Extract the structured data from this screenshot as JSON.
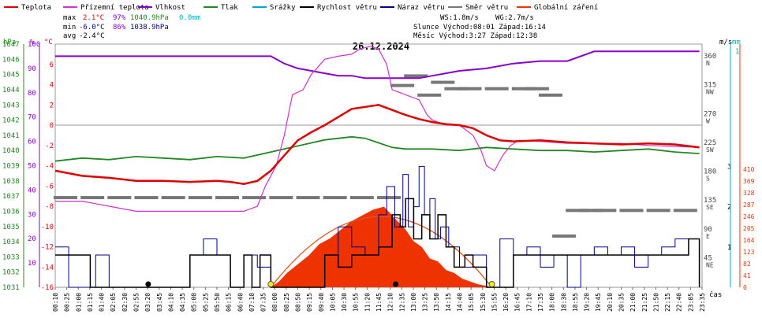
{
  "legend": [
    {
      "label": "Teplota",
      "color": "#dd0000"
    },
    {
      "label": "Přízemní teplota",
      "color": "#cc33cc"
    },
    {
      "label": "Vlhkost",
      "color": "#8800cc"
    },
    {
      "label": "Tlak",
      "color": "#228822"
    },
    {
      "label": "Srážky",
      "color": "#00aacc"
    },
    {
      "label": "Rychlost větru",
      "color": "#000000"
    },
    {
      "label": "Náraz větru",
      "color": "#000088"
    },
    {
      "label": "Směr větru",
      "color": "#777777"
    },
    {
      "label": "Globální záření",
      "color": "#ee3300"
    }
  ],
  "stats": {
    "max": {
      "label": "max",
      "temp": "2.1°C",
      "hum": "97%",
      "press": "1040.9hPa",
      "rain": "0.0mm"
    },
    "min": {
      "label": "min",
      "temp": "-6.0°C",
      "hum": "86%",
      "press": "1038.9hPa"
    },
    "avg": {
      "label": "avg",
      "temp": "-2.4°C"
    }
  },
  "wind_info": {
    "ws": "WS:1.8m/s",
    "wg": "WG:2.7m/s"
  },
  "sun_info": {
    "line": "Slunce Východ:08:01  Západ:16:14"
  },
  "moon_info": {
    "line": "Měsíc  Východ:3:27   Západ:12:38"
  },
  "chart_data": {
    "type": "line",
    "title": "26.12.2024",
    "xlabel": "čas",
    "x_ticks": [
      "00:10",
      "00:25",
      "01:00",
      "01:15",
      "01:40",
      "02:05",
      "02:30",
      "02:55",
      "03:20",
      "03:45",
      "04:10",
      "04:35",
      "05:00",
      "05:25",
      "05:50",
      "06:15",
      "06:40",
      "07:10",
      "07:35",
      "08:00",
      "08:25",
      "08:50",
      "09:15",
      "09:40",
      "10:05",
      "10:30",
      "10:55",
      "11:20",
      "11:45",
      "12:10",
      "12:35",
      "13:00",
      "13:25",
      "13:50",
      "14:15",
      "14:40",
      "15:05",
      "15:30",
      "15:55",
      "16:20",
      "16:45",
      "17:10",
      "17:35",
      "18:00",
      "18:30",
      "18:55",
      "19:20",
      "19:45",
      "20:10",
      "20:35",
      "21:00",
      "21:25",
      "21:50",
      "22:15",
      "22:40",
      "23:05",
      "23:35"
    ],
    "axes": {
      "pressure": {
        "unit": "hPa",
        "range": [
          1031,
          1047
        ],
        "ticks": [
          "1031",
          "1032",
          "1033",
          "1034",
          "1035",
          "1036",
          "1037",
          "1038",
          "1039",
          "1040",
          "1041",
          "1042",
          "1043",
          "1044",
          "1045",
          "1046",
          "1047"
        ]
      },
      "humidity": {
        "unit": "%",
        "range": [
          0,
          100
        ],
        "ticks": [
          "10",
          "20",
          "30",
          "40",
          "50",
          "60",
          "70",
          "80",
          "90",
          "100"
        ]
      },
      "temperature": {
        "unit": "°C",
        "range": [
          -16,
          8
        ],
        "ticks": [
          "-16",
          "-14",
          "-12",
          "-10",
          "-8",
          "-6",
          "-4",
          "-2",
          "0",
          "2",
          "4",
          "6"
        ]
      },
      "wind_dir": {
        "unit": "",
        "ticks": [
          {
            "v": "360",
            "d": "N"
          },
          {
            "v": "315",
            "d": "NW"
          },
          {
            "v": "270",
            "d": "W"
          },
          {
            "v": "225",
            "d": "SW"
          },
          {
            "v": "180",
            "d": "S"
          },
          {
            "v": "135",
            "d": "SE"
          },
          {
            "v": "90",
            "d": "E"
          },
          {
            "v": "45",
            "d": "NE"
          }
        ]
      },
      "wind_speed": {
        "unit": "m/s",
        "ticks": [
          "1",
          "2",
          "3"
        ]
      },
      "rain": {
        "unit": "mm",
        "ticks": [
          "0",
          "1"
        ]
      },
      "radiation": {
        "ticks": [
          "0",
          "41",
          "82",
          "123",
          "164",
          "205",
          "246",
          "287",
          "328",
          "369",
          "410"
        ]
      }
    },
    "series": [
      {
        "name": "Teplota",
        "color": "#dd0000",
        "x": [
          0,
          1,
          2,
          3,
          4,
          5,
          6,
          6.5,
          7,
          7.5,
          8,
          8.5,
          9,
          9.5,
          10,
          10.5,
          11,
          11.5,
          12,
          12.5,
          13,
          13.5,
          14,
          14.5,
          15,
          15.5,
          16,
          16.5,
          17,
          18,
          19,
          20,
          21,
          22,
          23,
          23.9
        ],
        "y": [
          -4.5,
          -5,
          -5.2,
          -5.5,
          -5.5,
          -5.6,
          -5.5,
          -5.6,
          -5.8,
          -5.5,
          -4.5,
          -3,
          -1.5,
          -0.7,
          0,
          0.8,
          1.6,
          1.8,
          2.0,
          1.5,
          1.0,
          0.6,
          0.3,
          0.1,
          0,
          -0.3,
          -1,
          -1.5,
          -1.6,
          -1.5,
          -1.7,
          -1.8,
          -1.9,
          -1.8,
          -1.9,
          -2.2
        ]
      },
      {
        "name": "Přízemní teplota",
        "color": "#cc33cc",
        "x": [
          0,
          1,
          2,
          3,
          4,
          5,
          6,
          7,
          7.5,
          7.8,
          8.2,
          8.5,
          8.8,
          9.2,
          9.5,
          10,
          10.5,
          11,
          11.3,
          11.7,
          12,
          12.3,
          12.5,
          13,
          13.5,
          13.8,
          14,
          14.5,
          15,
          15.5,
          15.8,
          16,
          16.3,
          16.6,
          16.9,
          17.2,
          18,
          19,
          20,
          21,
          22,
          23,
          23.9
        ],
        "y": [
          -7.5,
          -7.5,
          -8,
          -8.5,
          -8.5,
          -8.5,
          -8.5,
          -8.5,
          -8,
          -6,
          -4,
          -1,
          3,
          3.5,
          5,
          6.5,
          6.8,
          7,
          7.5,
          7.8,
          7.5,
          6,
          3.5,
          3,
          2.5,
          1,
          0.5,
          0,
          0,
          -1,
          -2.5,
          -4,
          -4.5,
          -3,
          -2,
          -1.5,
          -1.6,
          -1.8,
          -1.8,
          -1.8,
          -2,
          -2.1,
          -2.2
        ]
      },
      {
        "name": "Vlhkost",
        "color": "#8800cc",
        "x": [
          0,
          1,
          2,
          3,
          4,
          5,
          6,
          7,
          8,
          8.5,
          9,
          9.5,
          10,
          10.5,
          11,
          11.5,
          12,
          12.5,
          13,
          13.5,
          14,
          14.5,
          15,
          16,
          17,
          18,
          19,
          20,
          21,
          22,
          23,
          23.9
        ],
        "y": [
          95,
          95,
          95,
          95,
          95,
          95,
          95,
          95,
          95,
          92,
          90,
          89,
          88,
          87,
          87,
          86,
          86,
          86,
          86,
          86,
          87,
          88,
          89,
          90,
          92,
          93,
          93,
          97,
          97,
          97,
          97,
          97
        ]
      },
      {
        "name": "Tlak",
        "color": "#228822",
        "x": [
          0,
          1,
          2,
          3,
          4,
          5,
          6,
          7,
          8,
          9,
          10,
          11,
          11.5,
          12,
          12.5,
          13,
          14,
          15,
          16,
          17,
          18,
          19,
          20,
          21,
          22,
          23,
          23.9
        ],
        "y": [
          1039.3,
          1039.5,
          1039.4,
          1039.6,
          1039.5,
          1039.4,
          1039.6,
          1039.5,
          1039.9,
          1040.3,
          1040.7,
          1040.9,
          1040.8,
          1040.5,
          1040.2,
          1040.1,
          1040.1,
          1040.0,
          1040.2,
          1040.1,
          1040.0,
          1040.0,
          1039.9,
          1040.0,
          1040.1,
          1039.9,
          1039.8
        ]
      },
      {
        "name": "Rychlost větru",
        "color": "#000000",
        "x": [
          0,
          0.8,
          1.3,
          2,
          3,
          4,
          5,
          6,
          6.5,
          7,
          7.3,
          7.6,
          8,
          9,
          10,
          10.5,
          11,
          11.5,
          12,
          12.5,
          12.8,
          13,
          13.3,
          13.6,
          13.9,
          14.2,
          14.5,
          14.8,
          15.2,
          15.5,
          16,
          17,
          18,
          19,
          20,
          21,
          22,
          23,
          23.5,
          23.9
        ],
        "y": [
          0.8,
          0.8,
          0,
          0,
          0,
          0,
          0.8,
          0.8,
          0,
          0.8,
          0,
          0.8,
          0,
          0,
          0.8,
          0.5,
          0.8,
          0.8,
          1,
          1.8,
          1.5,
          2.2,
          1.2,
          1.8,
          1.2,
          1.8,
          1,
          0.5,
          0.8,
          0.5,
          0,
          0.8,
          0.8,
          0.8,
          0.8,
          0.8,
          0.8,
          0.8,
          1.2,
          0
        ]
      },
      {
        "name": "Náraz větru",
        "color": "#000088",
        "x": [
          0,
          0.5,
          1,
          1.5,
          2,
          3,
          4,
          5,
          5.5,
          6,
          6.5,
          7,
          7.5,
          8,
          9,
          10,
          10.5,
          11,
          11.5,
          12,
          12.3,
          12.6,
          12.9,
          13.1,
          13.3,
          13.5,
          13.7,
          13.9,
          14.1,
          14.3,
          14.6,
          15,
          15.5,
          16,
          16.5,
          17,
          17.5,
          18,
          18.5,
          19,
          19.5,
          20,
          20.5,
          21,
          21.5,
          22,
          22.5,
          23,
          23.5,
          23.9
        ],
        "y": [
          1,
          0,
          0,
          0.8,
          0,
          0,
          0,
          0.8,
          1.2,
          0.8,
          0,
          0.8,
          0.5,
          0,
          0,
          0.8,
          1.5,
          1,
          0.8,
          1.8,
          2.5,
          1.5,
          2.8,
          1.5,
          2.0,
          3.0,
          1.8,
          2.2,
          1.2,
          1.5,
          1,
          0.5,
          0.8,
          0,
          1.2,
          0.8,
          1,
          0.5,
          0.8,
          0,
          0.8,
          1,
          0.8,
          1,
          0.5,
          0.8,
          1,
          1.2,
          1.2,
          0
        ]
      },
      {
        "name": "Globální záření",
        "color": "#ee3300",
        "x": [
          8.0,
          8.3,
          8.6,
          9,
          9.4,
          9.8,
          10.2,
          10.6,
          11,
          11.4,
          11.8,
          12.2,
          12.6,
          13,
          13.3,
          13.6,
          13.9,
          14.2,
          14.5,
          14.8,
          15.1,
          15.4,
          15.7,
          16.0,
          16.2
        ],
        "y": [
          0,
          20,
          50,
          80,
          110,
          150,
          170,
          200,
          230,
          250,
          270,
          280,
          240,
          200,
          160,
          140,
          100,
          90,
          60,
          50,
          30,
          20,
          10,
          5,
          0
        ]
      },
      {
        "name": "Směr větru",
        "color": "#777777",
        "x": [
          0,
          1,
          2,
          3,
          4,
          5,
          6,
          7,
          8,
          9,
          10,
          11,
          12,
          12.5,
          13,
          13.5,
          14,
          14.5,
          15,
          16,
          17,
          17.5,
          18,
          18.5,
          19,
          19.5,
          20,
          21,
          22,
          23
        ],
        "y": [
          140,
          140,
          140,
          140,
          140,
          140,
          140,
          140,
          140,
          140,
          140,
          140,
          140,
          315,
          330,
          300,
          320,
          310,
          310,
          310,
          310,
          310,
          300,
          80,
          120,
          120,
          120,
          120,
          120,
          120
        ]
      }
    ],
    "x_range": [
      0,
      24
    ]
  }
}
